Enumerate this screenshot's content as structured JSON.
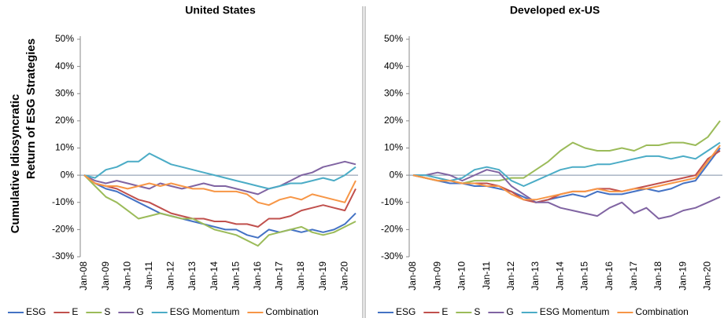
{
  "chart_data": [
    {
      "type": "line",
      "title": "United States",
      "ylabel": "Cumulative Idiosyncratic  Return of ESG Strategies",
      "categories": [
        "Jan-08",
        null,
        "Jan-09",
        null,
        "Jan-10",
        null,
        "Jan-11",
        null,
        "Jan-12",
        null,
        "Jan-13",
        null,
        "Jan-14",
        null,
        "Jan-15",
        null,
        "Jan-16",
        null,
        "Jan-17",
        null,
        "Jan-18",
        null,
        "Jan-19",
        null,
        "Jan-20",
        null
      ],
      "ylim": [
        -30,
        50
      ],
      "yticks": [
        {
          "value": -30,
          "label": "-30%"
        },
        {
          "value": -20,
          "label": "-20%"
        },
        {
          "value": -10,
          "label": "-10%"
        },
        {
          "value": 0,
          "label": "0%"
        },
        {
          "value": 10,
          "label": "10%"
        },
        {
          "value": 20,
          "label": "20%"
        },
        {
          "value": 30,
          "label": "30%"
        },
        {
          "value": 40,
          "label": "40%"
        },
        {
          "value": 50,
          "label": "50%"
        }
      ],
      "legend": "bottom",
      "series": [
        {
          "name": "ESG",
          "color": "#4472c4",
          "values": [
            0,
            -3,
            -5,
            -6,
            -8,
            -10,
            -12,
            -14,
            -15,
            -16,
            -17,
            -18,
            -19,
            -20,
            -20,
            -22,
            -23,
            -20,
            -21,
            -20,
            -21,
            -20,
            -21,
            -20,
            -18,
            -14
          ]
        },
        {
          "name": "E",
          "color": "#c0504d",
          "values": [
            0,
            -3,
            -4,
            -5,
            -7,
            -9,
            -10,
            -12,
            -14,
            -15,
            -16,
            -16,
            -17,
            -17,
            -18,
            -18,
            -19,
            -16,
            -16,
            -15,
            -13,
            -12,
            -11,
            -12,
            -13,
            -5
          ]
        },
        {
          "name": "S",
          "color": "#9bbb59",
          "values": [
            0,
            -4,
            -8,
            -10,
            -13,
            -16,
            -15,
            -14,
            -15,
            -16,
            -16,
            -18,
            -20,
            -21,
            -22,
            -24,
            -26,
            -22,
            -21,
            -20,
            -19,
            -21,
            -22,
            -21,
            -19,
            -17
          ]
        },
        {
          "name": "G",
          "color": "#8064a2",
          "values": [
            0,
            -2,
            -3,
            -2,
            -3,
            -4,
            -5,
            -3,
            -4,
            -5,
            -4,
            -3,
            -4,
            -4,
            -5,
            -6,
            -7,
            -5,
            -4,
            -2,
            0,
            1,
            3,
            4,
            5,
            4
          ]
        },
        {
          "name": "ESG Momentum",
          "color": "#4bacc6",
          "values": [
            0,
            -1,
            2,
            3,
            5,
            5,
            8,
            6,
            4,
            3,
            2,
            1,
            0,
            -1,
            -2,
            -3,
            -4,
            -5,
            -4,
            -3,
            -3,
            -2,
            -1,
            -2,
            0,
            3
          ]
        },
        {
          "name": "Combination",
          "color": "#f79646",
          "values": [
            0,
            -3,
            -4,
            -4,
            -5,
            -4,
            -3,
            -4,
            -3,
            -4,
            -5,
            -5,
            -6,
            -6,
            -6,
            -7,
            -10,
            -11,
            -9,
            -8,
            -9,
            -7,
            -8,
            -9,
            -10,
            -2
          ]
        }
      ]
    },
    {
      "type": "line",
      "title": "Developed ex-US",
      "categories": [
        "Jan-08",
        null,
        "Jan-09",
        null,
        "Jan-10",
        null,
        "Jan-11",
        null,
        "Jan-12",
        null,
        "Jan-13",
        null,
        "Jan-14",
        null,
        "Jan-15",
        null,
        "Jan-16",
        null,
        "Jan-17",
        null,
        "Jan-18",
        null,
        "Jan-19",
        null,
        "Jan-20",
        null
      ],
      "ylim": [
        -30,
        50
      ],
      "yticks": [
        {
          "value": -30,
          "label": "-30%"
        },
        {
          "value": -20,
          "label": "-20%"
        },
        {
          "value": -10,
          "label": "-10%"
        },
        {
          "value": 0,
          "label": "0%"
        },
        {
          "value": 10,
          "label": "10%"
        },
        {
          "value": 20,
          "label": "20%"
        },
        {
          "value": 30,
          "label": "30%"
        },
        {
          "value": 40,
          "label": "40%"
        },
        {
          "value": 50,
          "label": "50%"
        }
      ],
      "legend": "bottom",
      "series": [
        {
          "name": "ESG",
          "color": "#4472c4",
          "values": [
            0,
            -1,
            -2,
            -3,
            -3,
            -4,
            -4,
            -5,
            -6,
            -8,
            -10,
            -9,
            -8,
            -7,
            -8,
            -6,
            -7,
            -7,
            -6,
            -5,
            -6,
            -5,
            -3,
            -2,
            4,
            10
          ]
        },
        {
          "name": "E",
          "color": "#c0504d",
          "values": [
            0,
            -1,
            -2,
            -2,
            -3,
            -3,
            -3,
            -4,
            -6,
            -9,
            -10,
            -9,
            -7,
            -6,
            -6,
            -5,
            -5,
            -6,
            -5,
            -4,
            -3,
            -2,
            -1,
            0,
            6,
            9
          ]
        },
        {
          "name": "S",
          "color": "#9bbb59",
          "values": [
            0,
            -1,
            -2,
            -2,
            -3,
            -2,
            -2,
            -2,
            -1,
            -1,
            2,
            5,
            9,
            12,
            10,
            9,
            9,
            10,
            9,
            11,
            11,
            12,
            12,
            11,
            14,
            20
          ]
        },
        {
          "name": "G",
          "color": "#8064a2",
          "values": [
            0,
            0,
            1,
            0,
            -2,
            0,
            2,
            1,
            -4,
            -7,
            -10,
            -10,
            -12,
            -13,
            -14,
            -15,
            -12,
            -10,
            -14,
            -12,
            -16,
            -15,
            -13,
            -12,
            -10,
            -8
          ]
        },
        {
          "name": "ESG Momentum",
          "color": "#4bacc6",
          "values": [
            0,
            0,
            -1,
            -2,
            -1,
            2,
            3,
            2,
            -2,
            -4,
            -2,
            0,
            2,
            3,
            3,
            4,
            4,
            5,
            6,
            7,
            7,
            6,
            7,
            6,
            9,
            12
          ]
        },
        {
          "name": "Combination",
          "color": "#f79646",
          "values": [
            0,
            -1,
            -2,
            -2,
            -3,
            -3,
            -4,
            -4,
            -7,
            -9,
            -9,
            -8,
            -7,
            -6,
            -6,
            -5,
            -6,
            -6,
            -5,
            -5,
            -4,
            -3,
            -2,
            -1,
            5,
            11
          ]
        }
      ]
    }
  ]
}
